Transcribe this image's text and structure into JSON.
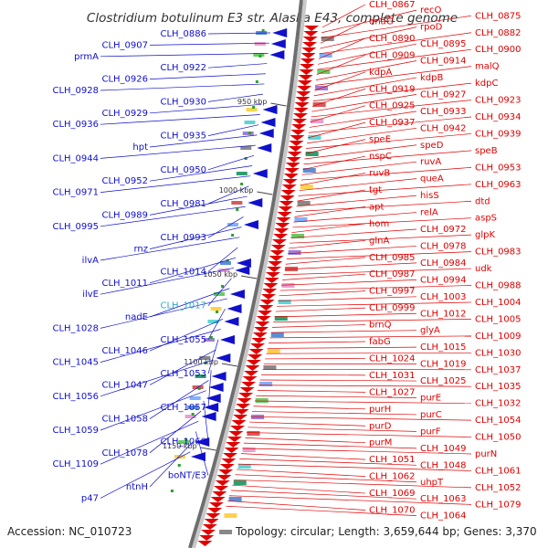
{
  "title": "Clostridium botulinum E3 str. Alaska E43, complete genome",
  "footer": {
    "accession": "Accession: NC_010723",
    "summary": "Topology: circular; Length: 3,659,644 bp; Genes: 3,370"
  },
  "colors": {
    "forward": "#e00000",
    "reverse": "#1010cc",
    "highlight": "#2aaacc",
    "backbone": "#888888"
  },
  "ticks": [
    "950 kbp",
    "1000 kbp",
    "1050 kbp",
    "1100 kbp",
    "1150 kbp"
  ],
  "forward_labels": [
    "CLH_0867",
    "recO",
    "CLH_0875",
    "dnaG",
    "rpoD",
    "CLH_0882",
    "CLH_0890",
    "CLH_0895",
    "CLH_0900",
    "CLH_0909",
    "CLH_0914",
    "malQ",
    "kdpA",
    "kdpB",
    "kdpC",
    "CLH_0919",
    "CLH_0927",
    "CLH_0923",
    "CLH_0925",
    "CLH_0933",
    "CLH_0934",
    "CLH_0937",
    "CLH_0942",
    "CLH_0939",
    "speE",
    "speD",
    "speB",
    "nspC",
    "ruvA",
    "CLH_0953",
    "ruvB",
    "queA",
    "CLH_0963",
    "tgt",
    "hisS",
    "dtd",
    "apt",
    "relA",
    "aspS",
    "hom",
    "CLH_0972",
    "glpK",
    "glnA",
    "CLH_0978",
    "CLH_0983",
    "CLH_0985",
    "CLH_0984",
    "udk",
    "CLH_0987",
    "CLH_0994",
    "CLH_0988",
    "CLH_0997",
    "CLH_1003",
    "CLH_1004",
    "CLH_0999",
    "CLH_1012",
    "CLH_1005",
    "brnQ",
    "glyA",
    "CLH_1009",
    "fabG",
    "CLH_1015",
    "CLH_1030",
    "CLH_1024",
    "CLH_1019",
    "CLH_1037",
    "CLH_1031",
    "CLH_1025",
    "CLH_1035",
    "CLH_1027",
    "purE",
    "CLH_1032",
    "purH",
    "purC",
    "CLH_1054",
    "purD",
    "purF",
    "CLH_1050",
    "purM",
    "CLH_1049",
    "purN",
    "CLH_1051",
    "CLH_1048",
    "CLH_1061",
    "CLH_1062",
    "uhpT",
    "CLH_1052",
    "CLH_1069",
    "CLH_1063",
    "CLH_1079",
    "CLH_1070",
    "CLH_1064"
  ],
  "reverse_labels": [
    "CLH_0886",
    "CLH_0907",
    "prmA",
    "CLH_0922",
    "CLH_0926",
    "CLH_0928",
    "CLH_0930",
    "CLH_0929",
    "CLH_0936",
    "CLH_0935",
    "hpt",
    "CLH_0944",
    "CLH_0950",
    "CLH_0952",
    "CLH_0971",
    "CLH_0981",
    "CLH_0989",
    "CLH_0995",
    "CLH_0993",
    "rnz",
    "ilvA",
    "CLH_1014",
    "CLH_1011",
    "ilvE",
    "CLH_1017",
    "nadE",
    "CLH_1028",
    "CLH_1055",
    "CLH_1046",
    "CLH_1045",
    "CLH_1053",
    "CLH_1047",
    "CLH_1056",
    "CLH_1057",
    "CLH_1058",
    "CLH_1059",
    "CLH_1060",
    "CLH_1078",
    "CLH_1109",
    "boNT/E3",
    "ntnH",
    "p47"
  ],
  "highlighted_label": "CLH_1017"
}
